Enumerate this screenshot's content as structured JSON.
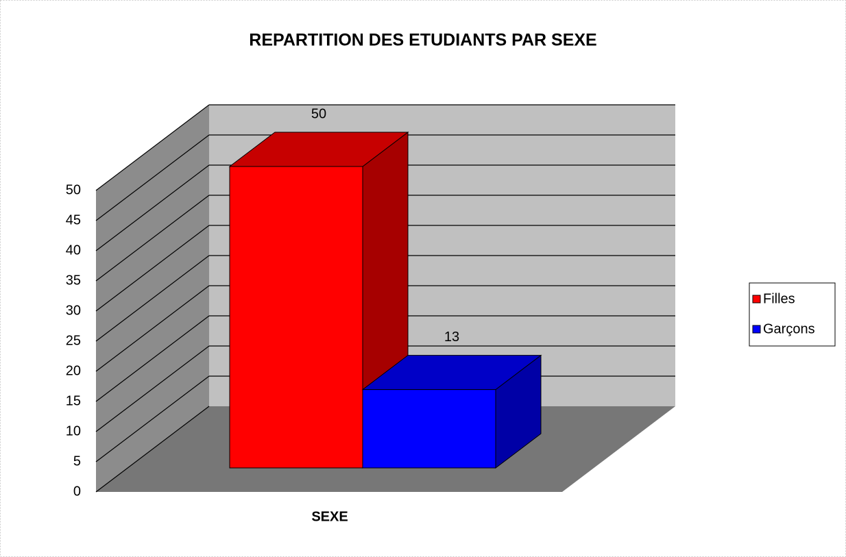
{
  "chart_data": {
    "type": "bar3d",
    "title": "REPARTITION DES ETUDIANTS PAR SEXE",
    "x_label": "SEXE",
    "categories": [
      "SEXE"
    ],
    "series": [
      {
        "name": "Filles",
        "color": "#ff0000",
        "values": [
          50
        ]
      },
      {
        "name": "Garçons",
        "color": "#0000ff",
        "values": [
          13
        ]
      }
    ],
    "ylim": [
      0,
      50
    ],
    "yticks": [
      0,
      5,
      10,
      15,
      20,
      25,
      30,
      35,
      40,
      45,
      50
    ],
    "grid": true,
    "legend": "right"
  }
}
